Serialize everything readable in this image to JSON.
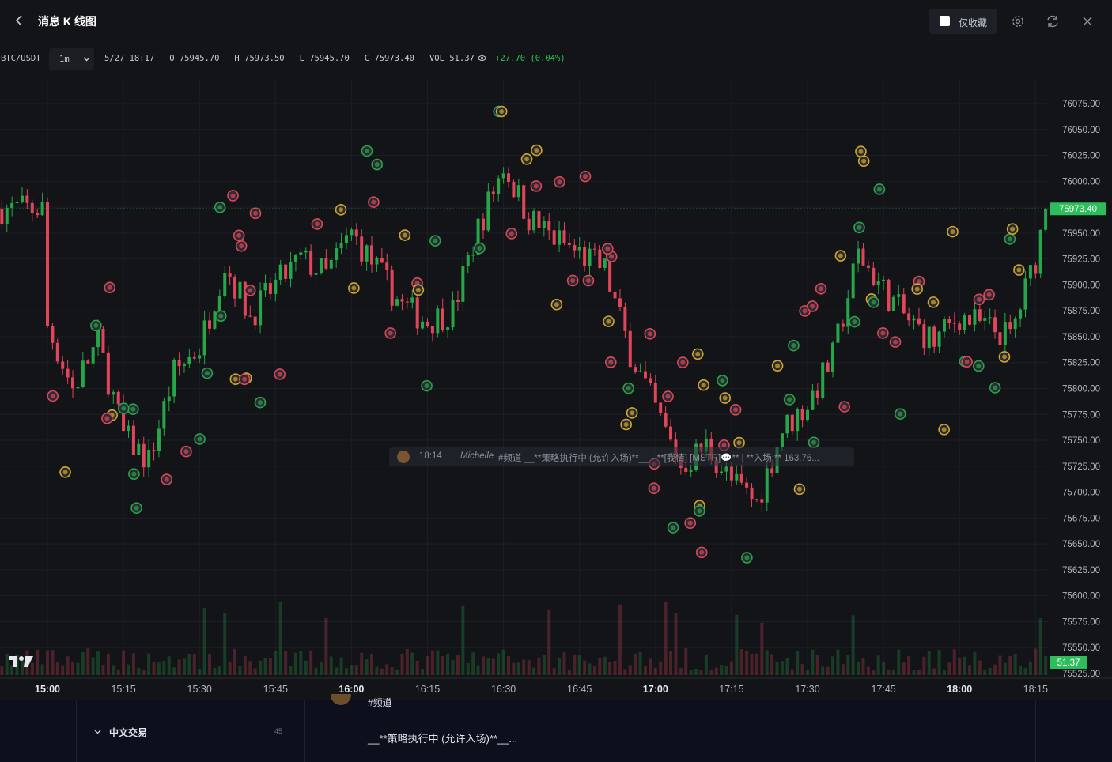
{
  "header": {
    "title": "消息 K 线图",
    "favorites_only_label": "仅收藏",
    "icons": [
      "chevron-left-icon",
      "gear-icon",
      "refresh-icon",
      "close-icon"
    ]
  },
  "ohlc_bar": {
    "symbol": "BTC/USDT",
    "interval": "1m",
    "datetime": "5/27 18:17",
    "open": "O 75945.70",
    "high": "H 75973.50",
    "low": "L 75945.70",
    "close": "C 75973.40",
    "volume": "VOL 51.37",
    "change": "+27.70 (0.04%)"
  },
  "tooltip": {
    "time": "18:14",
    "author": "Michelle",
    "text": "#频道 __**策略执行中 (允许入场)**__ - **[我情] [MSTR]💬** | **入场:** 163.76..."
  },
  "bottom_panel": {
    "section_title": "中文交易",
    "section_count": "45",
    "message_channel": "#频道",
    "message_text": "__**策略执行中 (允许入场)**__..."
  },
  "chart_data": {
    "type": "candlestick",
    "title": "",
    "xlabel": "",
    "ylabel": "",
    "ylim": [
      75525,
      76075
    ],
    "y_ticks": [
      "76075.00",
      "76050.00",
      "76025.00",
      "76000.00",
      "75975.00",
      "75950.00",
      "75925.00",
      "75900.00",
      "75875.00",
      "75850.00",
      "75825.00",
      "75800.00",
      "75775.00",
      "75750.00",
      "75725.00",
      "75700.00",
      "75675.00",
      "75650.00",
      "75625.00",
      "75600.00",
      "75575.00",
      "75550.00",
      "75525.00"
    ],
    "x_ticks": [
      "15:00",
      "15:15",
      "15:30",
      "15:45",
      "16:00",
      "16:15",
      "16:30",
      "16:45",
      "17:00",
      "17:15",
      "17:30",
      "17:45",
      "18:00",
      "18:15"
    ],
    "bold_x_ticks": [
      "15:00",
      "16:00",
      "17:00",
      "18:00"
    ],
    "last_price": "75973.40",
    "last_volume": "51.37",
    "colors": {
      "up": "#26a648",
      "down": "#e0455a",
      "background": "#131418",
      "last_price_line": "#2dbd5a"
    },
    "close_path": [
      {
        "t": "15:00",
        "close": 75860
      },
      {
        "t": "15:05",
        "close": 75800
      },
      {
        "t": "15:10",
        "close": 75845
      },
      {
        "t": "15:15",
        "close": 75755
      },
      {
        "t": "15:20",
        "close": 75730
      },
      {
        "t": "15:25",
        "close": 75815
      },
      {
        "t": "15:30",
        "close": 75840
      },
      {
        "t": "15:35",
        "close": 75920
      },
      {
        "t": "15:40",
        "close": 75870
      },
      {
        "t": "15:45",
        "close": 75900
      },
      {
        "t": "15:50",
        "close": 75925
      },
      {
        "t": "15:55",
        "close": 75910
      },
      {
        "t": "16:00",
        "close": 75950
      },
      {
        "t": "16:05",
        "close": 75915
      },
      {
        "t": "16:10",
        "close": 75880
      },
      {
        "t": "16:15",
        "close": 75865
      },
      {
        "t": "16:20",
        "close": 75875
      },
      {
        "t": "16:25",
        "close": 75955
      },
      {
        "t": "16:30",
        "close": 76015
      },
      {
        "t": "16:35",
        "close": 75965
      },
      {
        "t": "16:40",
        "close": 75945
      },
      {
        "t": "16:45",
        "close": 75930
      },
      {
        "t": "16:50",
        "close": 75915
      },
      {
        "t": "16:55",
        "close": 75835
      },
      {
        "t": "17:00",
        "close": 75780
      },
      {
        "t": "17:05",
        "close": 75725
      },
      {
        "t": "17:10",
        "close": 75745
      },
      {
        "t": "17:15",
        "close": 75710
      },
      {
        "t": "17:20",
        "close": 75690
      },
      {
        "t": "17:25",
        "close": 75760
      },
      {
        "t": "17:30",
        "close": 75785
      },
      {
        "t": "17:35",
        "close": 75830
      },
      {
        "t": "17:40",
        "close": 75930
      },
      {
        "t": "17:45",
        "close": 75895
      },
      {
        "t": "17:50",
        "close": 75865
      },
      {
        "t": "17:55",
        "close": 75845
      },
      {
        "t": "18:00",
        "close": 75870
      },
      {
        "t": "18:05",
        "close": 75860
      },
      {
        "t": "18:10",
        "close": 75850
      },
      {
        "t": "18:15",
        "close": 75925
      },
      {
        "t": "18:17",
        "close": 75973.4
      }
    ]
  }
}
